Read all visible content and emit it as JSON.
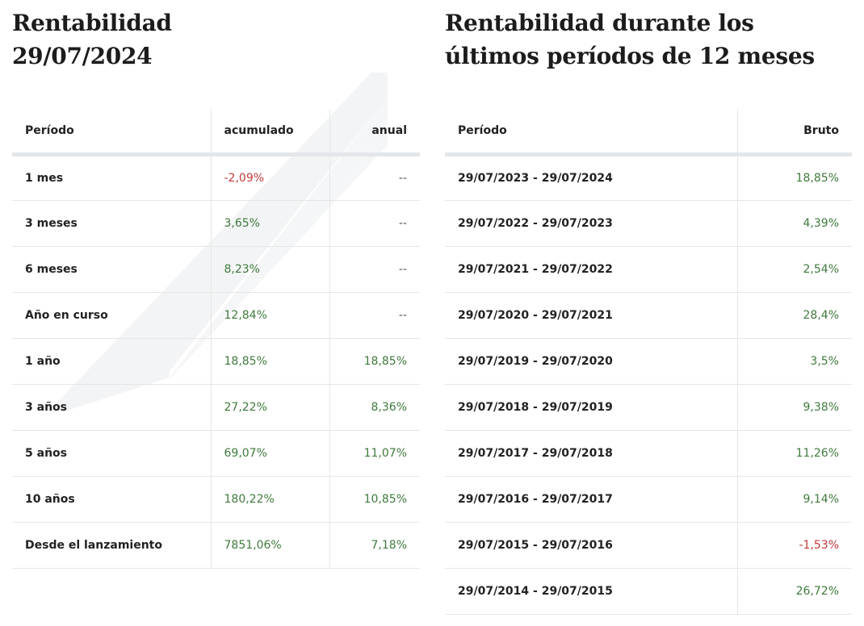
{
  "colors": {
    "positive": "#3f7a3c",
    "negative": "#c23a3a",
    "header_rule": "#e3e6ea"
  },
  "left": {
    "title": "Rentabilidad 29/07/2024",
    "headers": {
      "period": "Período",
      "cumulative": "acumulado",
      "annual": "anual"
    },
    "rows": [
      {
        "period": "1 mes",
        "cumulative": "-2,09%",
        "annual": "--"
      },
      {
        "period": "3 meses",
        "cumulative": "3,65%",
        "annual": "--"
      },
      {
        "period": "6 meses",
        "cumulative": "8,23%",
        "annual": "--"
      },
      {
        "period": "Año en curso",
        "cumulative": "12,84%",
        "annual": "--"
      },
      {
        "period": "1 año",
        "cumulative": "18,85%",
        "annual": "18,85%"
      },
      {
        "period": "3 años",
        "cumulative": "27,22%",
        "annual": "8,36%"
      },
      {
        "period": "5 años",
        "cumulative": "69,07%",
        "annual": "11,07%"
      },
      {
        "period": "10 años",
        "cumulative": "180,22%",
        "annual": "10,85%"
      },
      {
        "period": "Desde el lanzamiento",
        "cumulative": "7851,06%",
        "annual": "7,18%"
      }
    ]
  },
  "right": {
    "title": "Rentabilidad durante los últimos períodos de 12 meses",
    "headers": {
      "period": "Período",
      "gross": "Bruto"
    },
    "rows": [
      {
        "period": "29/07/2023 - 29/07/2024",
        "gross": "18,85%"
      },
      {
        "period": "29/07/2022 - 29/07/2023",
        "gross": "4,39%"
      },
      {
        "period": "29/07/2021 - 29/07/2022",
        "gross": "2,54%"
      },
      {
        "period": "29/07/2020 - 29/07/2021",
        "gross": "28,4%"
      },
      {
        "period": "29/07/2019 - 29/07/2020",
        "gross": "3,5%"
      },
      {
        "period": "29/07/2018 - 29/07/2019",
        "gross": "9,38%"
      },
      {
        "period": "29/07/2017 - 29/07/2018",
        "gross": "11,26%"
      },
      {
        "period": "29/07/2016 - 29/07/2017",
        "gross": "9,14%"
      },
      {
        "period": "29/07/2015 - 29/07/2016",
        "gross": "-1,53%"
      },
      {
        "period": "29/07/2014 - 29/07/2015",
        "gross": "26,72%"
      }
    ]
  }
}
